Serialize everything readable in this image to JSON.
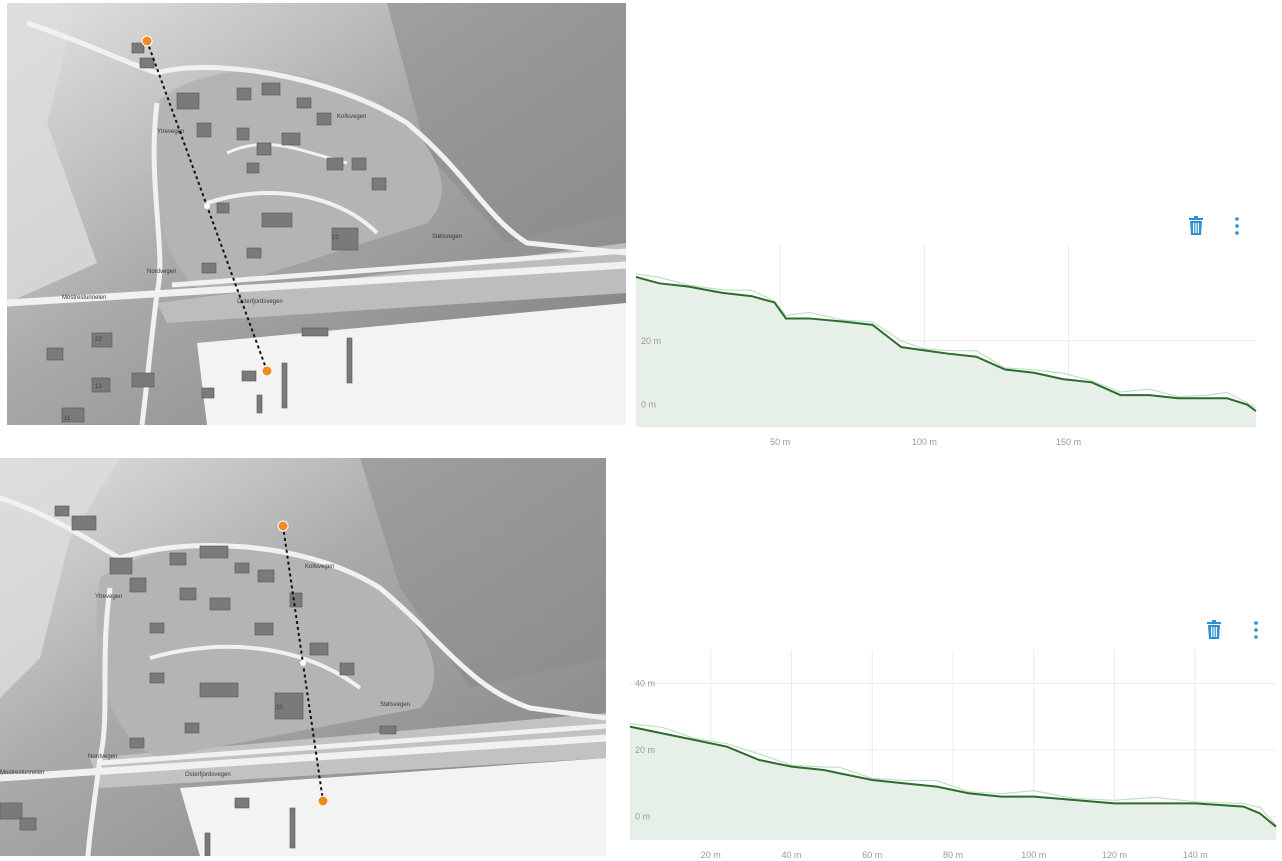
{
  "colors": {
    "accent": "#2f8fd1",
    "route_marker": "#f08a24",
    "profile_line": "#2e6b2e",
    "profile_fill": "#e6efe8",
    "profile_raw": "#bfe0c4"
  },
  "map_labels": {
    "street_west": "Mostrestunnelen",
    "street_center": "Osterfjordsvegen",
    "street_north": "Kollsvegen",
    "street_east": "Stølsvegen",
    "street_left": "Nordvegen",
    "street_village": "Ytrevegen",
    "number_a": "22",
    "number_b": "13",
    "number_c": "10",
    "number_d": "11"
  },
  "panels": [
    {
      "delete_icon": "trash-icon",
      "menu_icon": "more-vertical-icon",
      "y_ticks": [
        "20 m",
        "0 m"
      ],
      "x_ticks": [
        "50 m",
        "100 m",
        "150 m"
      ]
    },
    {
      "delete_icon": "trash-icon",
      "menu_icon": "more-vertical-icon",
      "y_ticks": [
        "40 m",
        "20 m",
        "0 m"
      ],
      "x_ticks": [
        "20 m",
        "40 m",
        "60 m",
        "80 m",
        "100 m",
        "120 m",
        "140 m"
      ]
    }
  ],
  "chart_data": [
    {
      "type": "area",
      "xlabel": "",
      "ylabel": "",
      "xlim": [
        0,
        215
      ],
      "ylim": [
        -7,
        50
      ],
      "x_ticks": [
        50,
        100,
        150
      ],
      "y_ticks": [
        0,
        20
      ],
      "series": [
        {
          "x": [
            0,
            8,
            18,
            30,
            40,
            48,
            52,
            60,
            72,
            82,
            92,
            100,
            108,
            118,
            128,
            138,
            148,
            158,
            168,
            178,
            188,
            198,
            205,
            212,
            215
          ],
          "y": [
            40,
            38,
            37,
            35,
            34,
            32,
            27,
            27,
            26,
            25,
            18,
            17,
            16,
            15,
            11,
            10,
            8,
            7,
            3,
            3,
            2,
            2,
            2,
            0,
            -2
          ]
        }
      ]
    },
    {
      "type": "area",
      "xlabel": "",
      "ylabel": "",
      "xlim": [
        0,
        160
      ],
      "ylim": [
        -7,
        50
      ],
      "x_ticks": [
        20,
        40,
        60,
        80,
        100,
        120,
        140
      ],
      "y_ticks": [
        0,
        20,
        40
      ],
      "series": [
        {
          "x": [
            0,
            8,
            16,
            24,
            32,
            40,
            48,
            52,
            60,
            68,
            76,
            84,
            92,
            100,
            110,
            120,
            130,
            140,
            152,
            156,
            160
          ],
          "y": [
            27,
            25,
            23,
            21,
            17,
            15,
            14,
            13,
            11,
            10,
            9,
            7,
            6,
            6,
            5,
            4,
            4,
            4,
            3,
            1,
            -3
          ]
        }
      ]
    }
  ]
}
